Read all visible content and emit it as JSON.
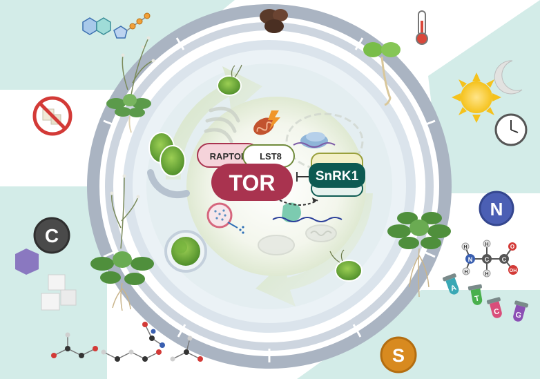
{
  "complex": {
    "raptor": "RAPTOR",
    "lst8": "LST8",
    "tor": "TOR",
    "snrk1": "SnRK1"
  },
  "nutrients": {
    "carbon": "C",
    "nitrogen": "N",
    "sulfur": "S"
  },
  "nucleotides": [
    "A",
    "T",
    "C",
    "G"
  ],
  "amino_acid_atoms": {
    "h_top_left": "H",
    "h_top_right": "H",
    "n": "N",
    "c1": "C",
    "c2": "C",
    "o": "O",
    "oh": "OH",
    "h_bottom_left": "H",
    "h_bottom_right": "H"
  },
  "colors": {
    "background_teal": "#cfeae6",
    "ring_outer": "#aeb8c6",
    "ring_inner": "#c9d1dc",
    "tor_red": "#a9334f",
    "raptor_pink": "#f5d3da",
    "snrk1_teal": "#0d5a52",
    "lst8_outline": "#6f8a3a",
    "carbon_gray": "#4a4a4a",
    "nitrogen_blue": "#4b5fb4",
    "sulfur_orange": "#d88a1f",
    "hexagon_purple": "#8a78c0"
  },
  "icons": [
    "molecule-chain-icon",
    "seeds-icon",
    "thermometer-icon",
    "seedling-icon",
    "sun-icon",
    "moon-icon",
    "clock-icon",
    "no-sugar-icon",
    "arabidopsis-plant-icon",
    "green-alga-icon",
    "mitochondrion-icon",
    "energy-bolt-icon",
    "ribosome-icon",
    "vacuole-icon",
    "sugar-cube-icon",
    "hexagon-icon",
    "test-tube-icon"
  ]
}
